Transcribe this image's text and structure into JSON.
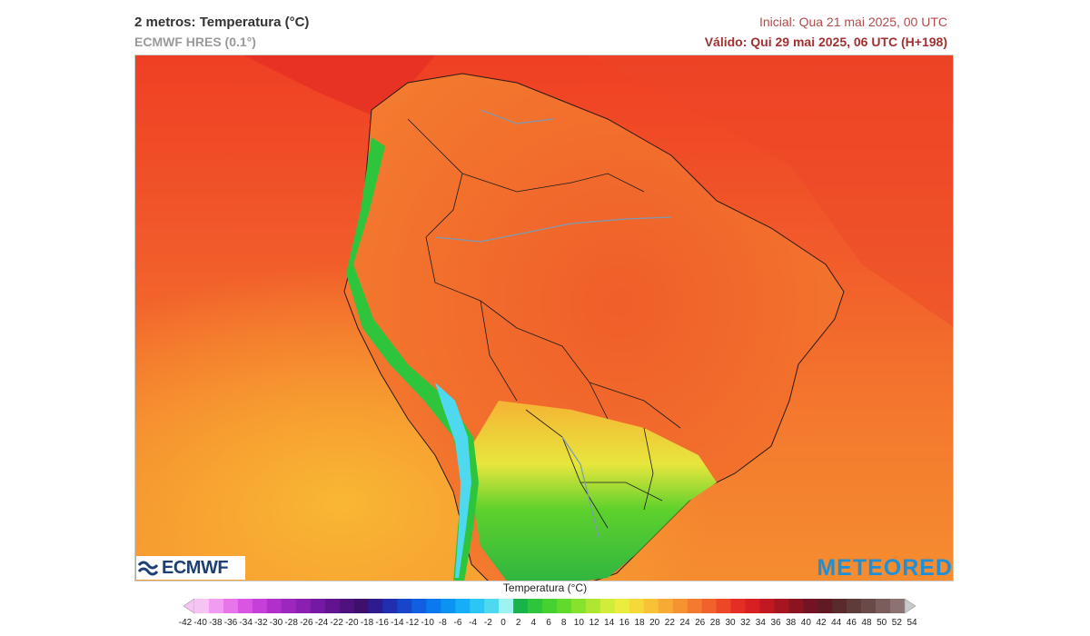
{
  "header": {
    "title": "2 metros: Temperatura (°C)",
    "model": "ECMWF HRES (0.1°)",
    "initial": "Inicial: Qua 21 mai 2025, 00 UTC",
    "valid": "Válido: Qui 29 mai 2025, 06 UTC (H+198)"
  },
  "logos": {
    "left": "ECMWF",
    "right": "METEORED"
  },
  "legend": {
    "title": "Temperatura (°C)",
    "labels": [
      "-42",
      "-40",
      "-38",
      "-36",
      "-34",
      "-32",
      "-30",
      "-28",
      "-26",
      "-24",
      "-22",
      "-20",
      "-18",
      "-16",
      "-14",
      "-12",
      "-10",
      "-8",
      "-6",
      "-4",
      "-2",
      "0",
      "2",
      "4",
      "6",
      "8",
      "10",
      "12",
      "14",
      "16",
      "18",
      "20",
      "22",
      "24",
      "26",
      "28",
      "30",
      "32",
      "34",
      "36",
      "38",
      "40",
      "42",
      "44",
      "46",
      "48",
      "50",
      "52",
      "54"
    ],
    "colors": [
      "#f6c3f2",
      "#f09cf0",
      "#e676ea",
      "#d856e2",
      "#c63fd8",
      "#b12fcb",
      "#9d26bf",
      "#8a1fb1",
      "#7518a3",
      "#621490",
      "#4f117e",
      "#3f0f6d",
      "#2d1c8f",
      "#1f2fb0",
      "#1646c9",
      "#0f5fe0",
      "#0a78ee",
      "#0b93f4",
      "#16aef6",
      "#2cc6f4",
      "#4fd9ee",
      "#9ef2ef",
      "#18b44a",
      "#2ec53d",
      "#45d130",
      "#62da2a",
      "#86e22b",
      "#aee632",
      "#d1ec3a",
      "#ecec3e",
      "#f5d83a",
      "#f8c237",
      "#f8ab34",
      "#f59331",
      "#f37a2e",
      "#f0612b",
      "#ec4727",
      "#e42e24",
      "#d81f22",
      "#c21821",
      "#a61520",
      "#8c1421",
      "#731323",
      "#611a24",
      "#5a2b2c",
      "#5f3b3a",
      "#6a4a49",
      "#7a5d5c",
      "#8c7271"
    ]
  },
  "map": {
    "region": "América do Sul"
  }
}
